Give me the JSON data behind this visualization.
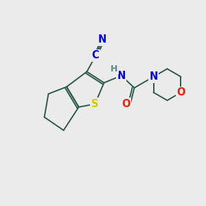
{
  "background_color": "#ebebeb",
  "bond_color": "#2d5a4a",
  "atom_colors": {
    "N": "#0000ee",
    "S": "#cccc00",
    "O": "#ee2200",
    "H": "#5a8888"
  },
  "lw": 1.4,
  "font_size": 10.5
}
